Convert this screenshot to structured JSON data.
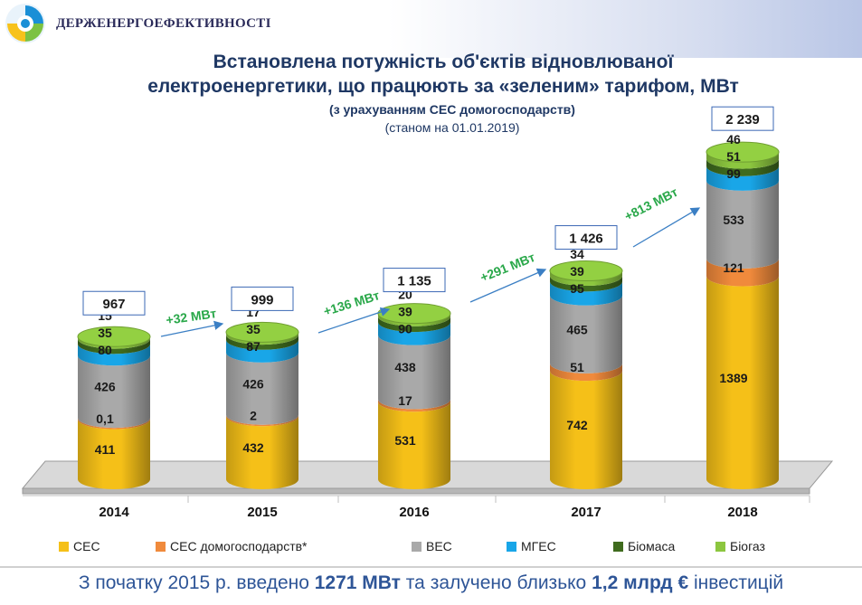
{
  "header": {
    "org_name": "ДЕРЖЕНЕРГОЕФЕКТИВНОСТІ"
  },
  "colors": {
    "ses": "#f5c018",
    "ses_home": "#f08a3c",
    "wind": "#a9a9a9",
    "hydro": "#19a6e8",
    "biomass": "#3f6b1e",
    "biogas": "#8cc63f",
    "growth": "#2aa84a"
  },
  "chart_data": {
    "type": "bar",
    "stacked": true,
    "title": "Встановлена потужність об'єктів відновлюваної",
    "title_line2": "електроенергетики, що працюють за «зеленим» тарифом, МВт",
    "subtitle": "(з урахуванням СЕС домогосподарств)",
    "subtitle2": "(станом на 01.01.2019)",
    "categories": [
      "2014",
      "2015",
      "2016",
      "2017",
      "2018"
    ],
    "series": [
      {
        "name": "СЕС",
        "values": [
          411,
          432,
          531,
          742,
          1389
        ],
        "labels": [
          "411",
          "432",
          "531",
          "742",
          "1389"
        ]
      },
      {
        "name": "СЕС домогосподарств*",
        "values": [
          0.1,
          2,
          17,
          51,
          121
        ],
        "labels": [
          "0,1",
          "2",
          "17",
          "51",
          "121"
        ]
      },
      {
        "name": "ВЕС",
        "values": [
          426,
          426,
          438,
          465,
          533
        ],
        "labels": [
          "426",
          "426",
          "438",
          "465",
          "533"
        ]
      },
      {
        "name": "МГЕС",
        "values": [
          80,
          87,
          90,
          95,
          99
        ],
        "labels": [
          "80",
          "87",
          "90",
          "95",
          "99"
        ]
      },
      {
        "name": "Біомаса",
        "values": [
          35,
          35,
          39,
          39,
          51
        ],
        "labels": [
          "35",
          "35",
          "39",
          "39",
          "51"
        ]
      },
      {
        "name": "Біогаз",
        "values": [
          15,
          17,
          20,
          34,
          46
        ],
        "labels": [
          "15",
          "17",
          "20",
          "34",
          "46"
        ]
      }
    ],
    "totals": [
      "967",
      "999",
      "1 135",
      "1 426",
      "2 239"
    ],
    "growth": [
      "+32 МВт",
      "+136 МВт",
      "+291 МВт",
      "+813 МВт"
    ],
    "legend_position": "bottom",
    "grid": false
  },
  "footer": {
    "part1": "З початку 2015 р. введено ",
    "value1": "1271 МВт",
    "part2": " та залучено  близько  ",
    "value2": "1,2 млрд €",
    "part3": " інвестицій"
  }
}
